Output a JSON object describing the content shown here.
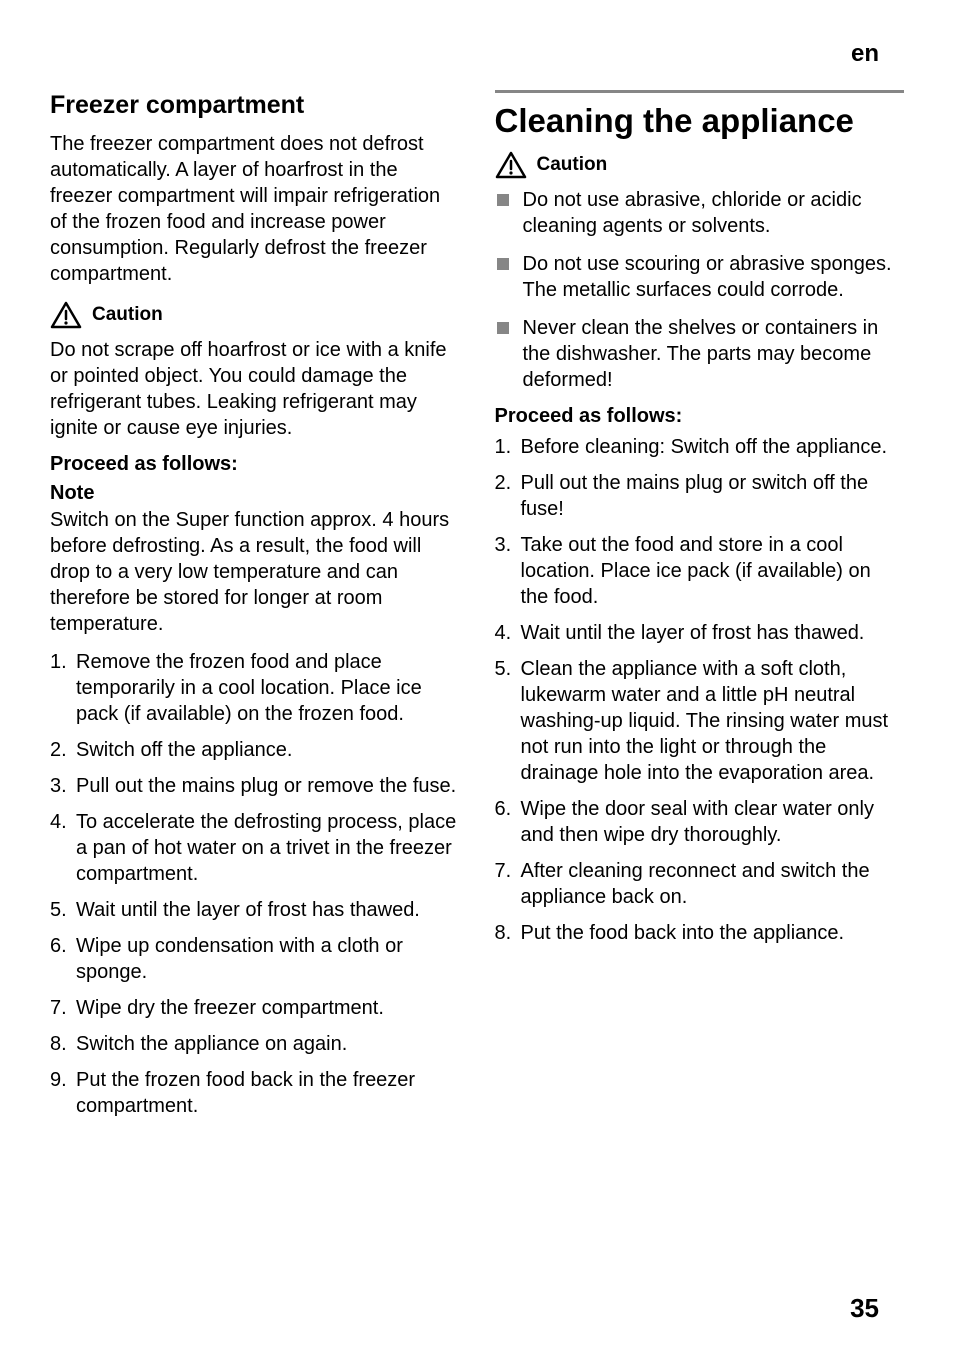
{
  "lang_code": "en",
  "page_number": "35",
  "left": {
    "heading": "Freezer compartment",
    "intro": "The freezer compartment does not defrost automatically. A layer of hoarfrost in the freezer compartment will impair refrigeration of the frozen food and increase power consumption. Regularly defrost the freezer compartment.",
    "caution_label": "Caution",
    "caution_text": "Do not scrape off hoarfrost or ice with a knife or pointed object. You could damage the refrigerant tubes. Leaking refrigerant may ignite or cause eye injuries.",
    "proceed_heading": "Proceed as follows:",
    "note_label": "Note",
    "note_text": "Switch on the Super function approx. 4 hours before defrosting. As a result, the food will drop to a very low temperature and can therefore be stored for longer at room temperature.",
    "steps": [
      "Remove the frozen food and place temporarily in a cool location. Place ice pack (if available) on the frozen food.",
      "Switch off the appliance.",
      "Pull out the mains plug or remove the fuse.",
      "To accelerate the defrosting process, place a pan of hot water on a trivet in the freezer compartment.",
      "Wait until the layer of frost has thawed.",
      "Wipe up condensation with a cloth or sponge.",
      "Wipe dry the freezer compartment.",
      "Switch the appliance on again.",
      "Put the frozen food back in the freezer compartment."
    ]
  },
  "right": {
    "heading": "Cleaning the appliance",
    "caution_label": "Caution",
    "caution_bullets": [
      "Do not use abrasive, chloride or acidic cleaning agents or solvents.",
      "Do not use scouring or abrasive sponges. The metallic surfaces could corrode.",
      "Never clean the shelves or containers in the dishwasher. The parts may become deformed!"
    ],
    "proceed_heading": "Proceed as follows:",
    "steps": [
      "Before cleaning: Switch off the appliance.",
      "Pull out the mains plug or switch off the fuse!",
      "Take out the food and store in a cool location. Place ice pack (if available) on the food.",
      "Wait until the layer of frost has thawed.",
      "Clean the appliance with a soft cloth, lukewarm water and a little pH neutral washing-up liquid. The rinsing water must not run into the light or through the drainage hole into the evaporation area.",
      "Wipe the door seal with clear water only and then wipe dry thoroughly.",
      "After cleaning reconnect and switch the appliance back on.",
      "Put the food back into the appliance."
    ]
  },
  "icons": {
    "warning_stroke": "#000000",
    "warning_fill": "#ffffff"
  }
}
